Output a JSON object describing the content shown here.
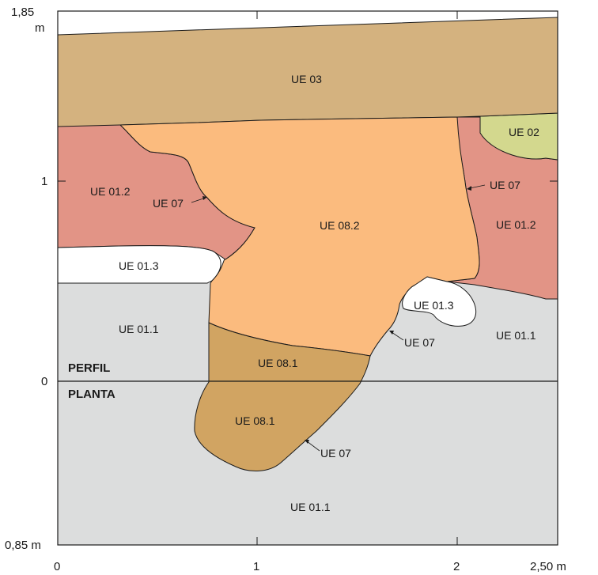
{
  "colors": {
    "ue_01_1": "#dcdddd",
    "ue_01_2": "#e29486",
    "ue_01_3": "#ffffff",
    "ue_02": "#d3d88e",
    "ue_03": "#d4b27f",
    "ue_08_2": "#fbbb7e",
    "ue_08_1": "#d1a462"
  },
  "axes": {
    "x_ticks": [
      "0",
      "1",
      "2",
      "2,50 m"
    ],
    "y_tick_top": "1,85",
    "y_tick_top_unit": "m",
    "y_tick_one": "1",
    "y_tick_zero": "0",
    "y_tick_bottom": "0,85 m"
  },
  "sections": {
    "profile": "PERFIL",
    "plan": "PLANTA"
  },
  "units": {
    "ue_03": "UE 03",
    "ue_02": "UE 02",
    "ue_01_2_left": "UE 01.2",
    "ue_01_2_right": "UE 01.2",
    "ue_07_left": "UE 07",
    "ue_07_right": "UE 07",
    "ue_07_mid": "UE 07",
    "ue_07_plan": "UE 07",
    "ue_08_2": "UE 08.2",
    "ue_01_3_left": "UE 01.3",
    "ue_01_3_right": "UE 01.3",
    "ue_01_1_left": "UE 01.1",
    "ue_01_1_right": "UE 01.1",
    "ue_01_1_plan": "UE 01.1",
    "ue_08_1_profile": "UE 08.1",
    "ue_08_1_plan": "UE 08.1"
  }
}
